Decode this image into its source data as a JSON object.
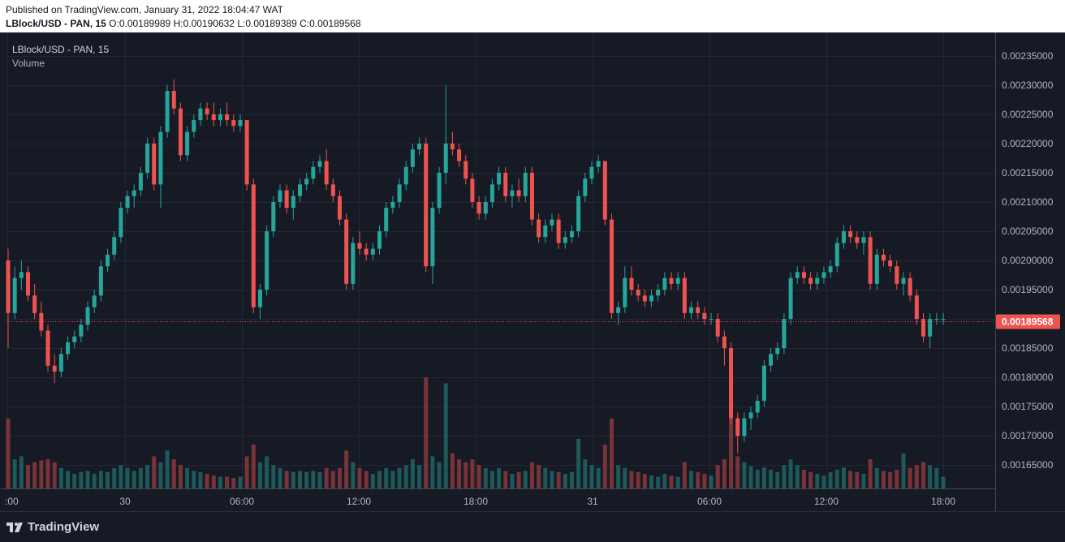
{
  "header": {
    "published": "Published on TradingView.com, January 31, 2022 18:04:47 WAT",
    "symbol_line": "LBlock/USD - PAN, 15",
    "o_label": "O:",
    "o_value": "0.00189989",
    "h_label": "H:",
    "h_value": "0.00190632",
    "l_label": "L:",
    "l_value": "0.00189389",
    "c_label": "C:",
    "c_value": "0.00189568"
  },
  "legend": {
    "symbol": "LBlock/USD - PAN, 15",
    "volume": "Volume"
  },
  "footer": {
    "logo_text": "TradingView"
  },
  "colors": {
    "up": "#26a69a",
    "down": "#ef5350",
    "background": "#161a25",
    "grid": "#242733",
    "price_tag": "#ef5350"
  },
  "chart_data": {
    "type": "candlestick",
    "symbol": "LBlock/USD - PAN, 15",
    "ylim": [
      0.00161,
      0.00239
    ],
    "y_ticks": [
      "0.00165000",
      "0.00170000",
      "0.00175000",
      "0.00180000",
      "0.00185000",
      "0.00190000",
      "0.00195000",
      "0.00200000",
      "0.00205000",
      "0.00210000",
      "0.00215000",
      "0.00220000",
      "0.00225000",
      "0.00230000",
      "0.00235000"
    ],
    "x_ticks": [
      ":00",
      "30",
      "06:00",
      "12:00",
      "18:00",
      "31",
      "06:00",
      "12:00",
      "18:00"
    ],
    "last_price": "0.00189568",
    "candles": [
      [
        0.002,
        0.00202,
        0.00185,
        0.00191,
        120
      ],
      [
        0.00191,
        0.00199,
        0.0019,
        0.00197,
        50
      ],
      [
        0.00197,
        0.002,
        0.00195,
        0.00198,
        55
      ],
      [
        0.00198,
        0.00199,
        0.00193,
        0.00194,
        40
      ],
      [
        0.00194,
        0.00196,
        0.0019,
        0.00191,
        45
      ],
      [
        0.00191,
        0.00193,
        0.00187,
        0.00188,
        48
      ],
      [
        0.00188,
        0.00189,
        0.00181,
        0.00182,
        50
      ],
      [
        0.00182,
        0.00184,
        0.00179,
        0.00181,
        45
      ],
      [
        0.00181,
        0.00185,
        0.0018,
        0.00184,
        35
      ],
      [
        0.00184,
        0.00187,
        0.00183,
        0.00186,
        30
      ],
      [
        0.00186,
        0.00188,
        0.00185,
        0.00187,
        25
      ],
      [
        0.00187,
        0.0019,
        0.00186,
        0.00189,
        28
      ],
      [
        0.00189,
        0.00193,
        0.00188,
        0.00192,
        30
      ],
      [
        0.00192,
        0.00195,
        0.00191,
        0.00194,
        25
      ],
      [
        0.00194,
        0.002,
        0.00193,
        0.00199,
        30
      ],
      [
        0.00199,
        0.00202,
        0.00198,
        0.00201,
        28
      ],
      [
        0.00201,
        0.00205,
        0.002,
        0.00204,
        35
      ],
      [
        0.00204,
        0.0021,
        0.00203,
        0.00209,
        40
      ],
      [
        0.00209,
        0.00212,
        0.00208,
        0.00211,
        35
      ],
      [
        0.00211,
        0.00213,
        0.00209,
        0.00212,
        30
      ],
      [
        0.00212,
        0.00216,
        0.00211,
        0.00215,
        35
      ],
      [
        0.00215,
        0.00221,
        0.00214,
        0.0022,
        40
      ],
      [
        0.0022,
        0.00221,
        0.00212,
        0.00213,
        55
      ],
      [
        0.00213,
        0.00223,
        0.00209,
        0.00222,
        45
      ],
      [
        0.00222,
        0.0023,
        0.00221,
        0.00229,
        65
      ],
      [
        0.00229,
        0.00231,
        0.00225,
        0.00226,
        50
      ],
      [
        0.00226,
        0.00227,
        0.00217,
        0.00218,
        40
      ],
      [
        0.00218,
        0.00223,
        0.00217,
        0.00222,
        35
      ],
      [
        0.00222,
        0.00225,
        0.00221,
        0.00224,
        30
      ],
      [
        0.00224,
        0.00227,
        0.00223,
        0.00226,
        28
      ],
      [
        0.00226,
        0.00227,
        0.00224,
        0.00225,
        25
      ],
      [
        0.00225,
        0.00227,
        0.00223,
        0.00224,
        22
      ],
      [
        0.00224,
        0.00226,
        0.00223,
        0.00225,
        20
      ],
      [
        0.00225,
        0.00227,
        0.00223,
        0.00224,
        20
      ],
      [
        0.00224,
        0.00225,
        0.00222,
        0.00223,
        18
      ],
      [
        0.00223,
        0.00225,
        0.00222,
        0.00224,
        20
      ],
      [
        0.00224,
        0.00224,
        0.00212,
        0.00213,
        55
      ],
      [
        0.00213,
        0.00214,
        0.00191,
        0.00192,
        75
      ],
      [
        0.00192,
        0.00196,
        0.0019,
        0.00195,
        45
      ],
      [
        0.00195,
        0.00206,
        0.00194,
        0.00205,
        55
      ],
      [
        0.00205,
        0.00211,
        0.00204,
        0.0021,
        40
      ],
      [
        0.0021,
        0.00213,
        0.00209,
        0.00212,
        35
      ],
      [
        0.00212,
        0.00213,
        0.00208,
        0.00209,
        30
      ],
      [
        0.00209,
        0.00212,
        0.00207,
        0.00211,
        28
      ],
      [
        0.00211,
        0.00214,
        0.0021,
        0.00213,
        30
      ],
      [
        0.00213,
        0.00215,
        0.00212,
        0.00214,
        28
      ],
      [
        0.00214,
        0.00217,
        0.00213,
        0.00216,
        30
      ],
      [
        0.00216,
        0.00218,
        0.00215,
        0.00217,
        28
      ],
      [
        0.00217,
        0.00219,
        0.00212,
        0.00213,
        35
      ],
      [
        0.00213,
        0.00214,
        0.0021,
        0.00211,
        30
      ],
      [
        0.00211,
        0.00212,
        0.00206,
        0.00207,
        35
      ],
      [
        0.00207,
        0.00208,
        0.00195,
        0.00196,
        65
      ],
      [
        0.00196,
        0.00204,
        0.00195,
        0.00203,
        45
      ],
      [
        0.00203,
        0.00205,
        0.00201,
        0.00202,
        35
      ],
      [
        0.00202,
        0.00203,
        0.002,
        0.00201,
        30
      ],
      [
        0.00201,
        0.00203,
        0.002,
        0.00202,
        25
      ],
      [
        0.00202,
        0.00206,
        0.00201,
        0.00205,
        30
      ],
      [
        0.00205,
        0.0021,
        0.00204,
        0.00209,
        35
      ],
      [
        0.00209,
        0.00211,
        0.00208,
        0.0021,
        30
      ],
      [
        0.0021,
        0.00214,
        0.00209,
        0.00213,
        35
      ],
      [
        0.00213,
        0.00217,
        0.00212,
        0.00216,
        40
      ],
      [
        0.00216,
        0.0022,
        0.00215,
        0.00219,
        50
      ],
      [
        0.00219,
        0.00221,
        0.00218,
        0.0022,
        40
      ],
      [
        0.0022,
        0.00221,
        0.00198,
        0.00199,
        190
      ],
      [
        0.00199,
        0.0021,
        0.00196,
        0.00209,
        55
      ],
      [
        0.00209,
        0.00216,
        0.00208,
        0.00215,
        45
      ],
      [
        0.00215,
        0.0023,
        0.00213,
        0.0022,
        180
      ],
      [
        0.0022,
        0.00222,
        0.00218,
        0.00219,
        60
      ],
      [
        0.00219,
        0.0022,
        0.00216,
        0.00217,
        50
      ],
      [
        0.00217,
        0.00218,
        0.00213,
        0.00214,
        45
      ],
      [
        0.00214,
        0.00215,
        0.00209,
        0.0021,
        50
      ],
      [
        0.0021,
        0.00211,
        0.00207,
        0.00208,
        40
      ],
      [
        0.00208,
        0.00211,
        0.00207,
        0.0021,
        35
      ],
      [
        0.0021,
        0.00214,
        0.00209,
        0.00213,
        30
      ],
      [
        0.00213,
        0.00216,
        0.00212,
        0.00215,
        35
      ],
      [
        0.00215,
        0.00216,
        0.0021,
        0.00211,
        30
      ],
      [
        0.00211,
        0.00213,
        0.00209,
        0.00212,
        25
      ],
      [
        0.00212,
        0.00214,
        0.0021,
        0.00211,
        28
      ],
      [
        0.00211,
        0.00216,
        0.0021,
        0.00215,
        30
      ],
      [
        0.00215,
        0.00216,
        0.00206,
        0.00207,
        45
      ],
      [
        0.00207,
        0.00208,
        0.00203,
        0.00204,
        40
      ],
      [
        0.00204,
        0.00207,
        0.00203,
        0.00206,
        35
      ],
      [
        0.00206,
        0.00208,
        0.00205,
        0.00207,
        30
      ],
      [
        0.00207,
        0.00208,
        0.00202,
        0.00203,
        28
      ],
      [
        0.00203,
        0.00205,
        0.00202,
        0.00204,
        25
      ],
      [
        0.00204,
        0.00206,
        0.00203,
        0.00205,
        28
      ],
      [
        0.00205,
        0.00212,
        0.00204,
        0.00211,
        85
      ],
      [
        0.00211,
        0.00215,
        0.0021,
        0.00214,
        50
      ],
      [
        0.00214,
        0.00217,
        0.00213,
        0.00216,
        40
      ],
      [
        0.00216,
        0.00218,
        0.00215,
        0.00217,
        35
      ],
      [
        0.00217,
        0.00217,
        0.00206,
        0.00207,
        75
      ],
      [
        0.00207,
        0.00208,
        0.0019,
        0.00191,
        120
      ],
      [
        0.00191,
        0.00193,
        0.00189,
        0.00192,
        40
      ],
      [
        0.00192,
        0.00199,
        0.00191,
        0.00197,
        35
      ],
      [
        0.00197,
        0.00199,
        0.00194,
        0.00195,
        30
      ],
      [
        0.00195,
        0.00196,
        0.00193,
        0.00194,
        28
      ],
      [
        0.00194,
        0.00195,
        0.00192,
        0.00193,
        25
      ],
      [
        0.00193,
        0.00195,
        0.00192,
        0.00194,
        22
      ],
      [
        0.00194,
        0.00196,
        0.00193,
        0.00195,
        20
      ],
      [
        0.00195,
        0.00198,
        0.00194,
        0.00197,
        25
      ],
      [
        0.00197,
        0.00198,
        0.00195,
        0.00196,
        22
      ],
      [
        0.00196,
        0.00198,
        0.00195,
        0.00197,
        20
      ],
      [
        0.00197,
        0.00198,
        0.0019,
        0.00191,
        45
      ],
      [
        0.00191,
        0.00193,
        0.0019,
        0.00192,
        30
      ],
      [
        0.00192,
        0.00193,
        0.0019,
        0.00191,
        28
      ],
      [
        0.00191,
        0.00192,
        0.00189,
        0.0019,
        25
      ],
      [
        0.0019,
        0.00191,
        0.00189,
        0.0019,
        22
      ],
      [
        0.0019,
        0.00191,
        0.00186,
        0.00187,
        40
      ],
      [
        0.00187,
        0.00188,
        0.00182,
        0.00185,
        50
      ],
      [
        0.00185,
        0.00186,
        0.00172,
        0.00173,
        120
      ],
      [
        0.00173,
        0.00174,
        0.00167,
        0.0017,
        55
      ],
      [
        0.0017,
        0.00174,
        0.00169,
        0.00173,
        45
      ],
      [
        0.00173,
        0.00175,
        0.00171,
        0.00174,
        38
      ],
      [
        0.00174,
        0.00177,
        0.00173,
        0.00176,
        32
      ],
      [
        0.00176,
        0.00183,
        0.00175,
        0.00182,
        36
      ],
      [
        0.00182,
        0.00185,
        0.00181,
        0.00184,
        32
      ],
      [
        0.00184,
        0.00186,
        0.00183,
        0.00185,
        28
      ],
      [
        0.00185,
        0.00191,
        0.00184,
        0.0019,
        40
      ],
      [
        0.0019,
        0.00198,
        0.00189,
        0.00197,
        50
      ],
      [
        0.00197,
        0.00199,
        0.00196,
        0.00198,
        40
      ],
      [
        0.00198,
        0.00199,
        0.00196,
        0.00197,
        32
      ],
      [
        0.00197,
        0.00198,
        0.00195,
        0.00196,
        28
      ],
      [
        0.00196,
        0.00198,
        0.00195,
        0.00197,
        25
      ],
      [
        0.00197,
        0.00199,
        0.00196,
        0.00198,
        22
      ],
      [
        0.00198,
        0.002,
        0.00197,
        0.00199,
        28
      ],
      [
        0.00199,
        0.00204,
        0.00198,
        0.00203,
        32
      ],
      [
        0.00203,
        0.00206,
        0.00202,
        0.00205,
        36
      ],
      [
        0.00205,
        0.00206,
        0.00203,
        0.00204,
        30
      ],
      [
        0.00204,
        0.00205,
        0.00202,
        0.00203,
        28
      ],
      [
        0.00203,
        0.00205,
        0.00201,
        0.00204,
        25
      ],
      [
        0.00204,
        0.00205,
        0.00195,
        0.00196,
        50
      ],
      [
        0.00196,
        0.00202,
        0.00195,
        0.00201,
        35
      ],
      [
        0.00201,
        0.00202,
        0.00199,
        0.002,
        30
      ],
      [
        0.002,
        0.00201,
        0.00198,
        0.00199,
        28
      ],
      [
        0.00199,
        0.002,
        0.00195,
        0.00196,
        32
      ],
      [
        0.00196,
        0.00198,
        0.00194,
        0.00197,
        60
      ],
      [
        0.00197,
        0.00198,
        0.00193,
        0.00194,
        35
      ],
      [
        0.00194,
        0.00195,
        0.00189,
        0.0019,
        40
      ],
      [
        0.0019,
        0.00191,
        0.00186,
        0.00187,
        45
      ],
      [
        0.00187,
        0.00191,
        0.00185,
        0.0019,
        40
      ],
      [
        0.0019,
        0.00191,
        0.00189,
        0.0019,
        35
      ],
      [
        0.0019,
        0.00191,
        0.00189,
        0.0019,
        20
      ]
    ]
  }
}
